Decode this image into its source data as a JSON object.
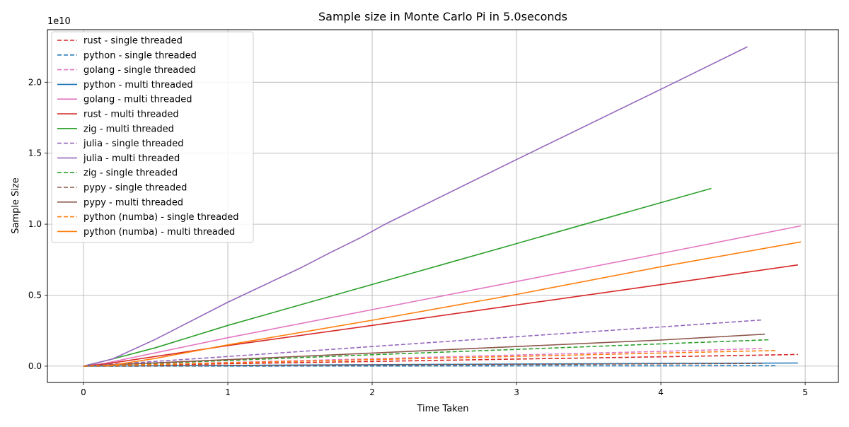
{
  "chart_data": {
    "type": "line",
    "title": "Sample size in Monte Carlo Pi in 5.0seconds",
    "xlabel": "Time Taken",
    "ylabel": "Sample Size",
    "y_offset_label": "1e10",
    "xlim": [
      -0.25,
      5.23
    ],
    "ylim": [
      -1.15,
      23.7
    ],
    "x_ticks": [
      0,
      1,
      2,
      3,
      4,
      5
    ],
    "x_tick_labels": [
      "0",
      "1",
      "2",
      "3",
      "4",
      "5"
    ],
    "y_ticks": [
      0,
      5,
      10,
      15,
      20
    ],
    "y_tick_labels": [
      "0.0",
      "0.5",
      "1.0",
      "1.5",
      "2.0"
    ],
    "grid": true,
    "legend_position": "top-left",
    "series": [
      {
        "name": "rust - single threaded",
        "color": "#d62728",
        "dash": true,
        "x": [
          0,
          0.15,
          1,
          2,
          3,
          4,
          4.95
        ],
        "y": [
          0,
          0.02,
          0.17,
          0.33,
          0.5,
          0.66,
          0.82
        ]
      },
      {
        "name": "python - single threaded",
        "color": "#1f77b4",
        "dash": true,
        "x": [
          0,
          0.3,
          1,
          2,
          3,
          4,
          4.8
        ],
        "y": [
          0,
          0.002,
          0.006,
          0.012,
          0.018,
          0.024,
          0.03
        ]
      },
      {
        "name": "golang - single threaded",
        "color": "#e377c2",
        "dash": true,
        "x": [
          0,
          0.15,
          1,
          2,
          3,
          4,
          4.7
        ],
        "y": [
          0,
          0.03,
          0.26,
          0.52,
          0.78,
          1.04,
          1.24
        ]
      },
      {
        "name": "python - multi threaded",
        "color": "#1f77b4",
        "dash": false,
        "x": [
          0,
          0.4,
          1,
          2,
          3,
          4,
          4.95
        ],
        "y": [
          0,
          0.02,
          0.05,
          0.1,
          0.15,
          0.19,
          0.22
        ]
      },
      {
        "name": "golang - multi threaded",
        "color": "#e377c2",
        "dash": false,
        "x": [
          0,
          0.15,
          1,
          2,
          3,
          4,
          4.97
        ],
        "y": [
          0,
          0.2,
          2.0,
          3.98,
          5.96,
          7.94,
          9.88
        ]
      },
      {
        "name": "rust - multi threaded",
        "color": "#d62728",
        "dash": false,
        "x": [
          0,
          0.15,
          1,
          2,
          3,
          4,
          4.95
        ],
        "y": [
          0,
          0.15,
          1.45,
          2.87,
          4.31,
          5.74,
          7.13
        ]
      },
      {
        "name": "zig - multi threaded",
        "color": "#2ca02c",
        "dash": false,
        "x": [
          0,
          0.1,
          0.2,
          0.5,
          1,
          2,
          3,
          4,
          4.35
        ],
        "y": [
          0,
          0.25,
          0.5,
          1.3,
          2.87,
          5.75,
          8.63,
          11.52,
          12.52
        ]
      },
      {
        "name": "julia - single threaded",
        "color": "#9467bd",
        "dash": true,
        "x": [
          0,
          0.3,
          1,
          2,
          3,
          4,
          4.7
        ],
        "y": [
          0,
          0.2,
          0.68,
          1.38,
          2.07,
          2.76,
          3.25
        ]
      },
      {
        "name": "julia - multi threaded",
        "color": "#9467bd",
        "dash": false,
        "x": [
          0,
          0.2,
          0.5,
          1,
          1.5,
          1.7,
          1.92,
          2.1,
          3,
          4,
          4.6
        ],
        "y": [
          0,
          0.5,
          1.9,
          4.5,
          6.9,
          7.95,
          9.05,
          10.05,
          14.55,
          19.5,
          22.5
        ]
      },
      {
        "name": "zig - single threaded",
        "color": "#2ca02c",
        "dash": true,
        "x": [
          0,
          0.2,
          1,
          2,
          3,
          4,
          4.75
        ],
        "y": [
          0,
          0.08,
          0.4,
          0.8,
          1.18,
          1.57,
          1.86
        ]
      },
      {
        "name": "pypy - single threaded",
        "color": "#8c564b",
        "dash": true,
        "x": [
          0,
          0.3,
          1,
          2,
          3,
          4,
          4.7
        ],
        "y": [
          0,
          0.01,
          0.04,
          0.08,
          0.12,
          0.16,
          0.19
        ]
      },
      {
        "name": "pypy - multi threaded",
        "color": "#8c564b",
        "dash": false,
        "x": [
          0,
          0.2,
          1,
          2,
          3,
          4,
          4.72
        ],
        "y": [
          0,
          0.1,
          0.46,
          0.92,
          1.38,
          1.84,
          2.25
        ]
      },
      {
        "name": "python (numba) - single threaded",
        "color": "#ff7f0e",
        "dash": true,
        "x": [
          0,
          0.2,
          1,
          2,
          3,
          4,
          4.8
        ],
        "y": [
          0,
          0.05,
          0.23,
          0.46,
          0.69,
          0.92,
          1.1
        ]
      },
      {
        "name": "python (numba) - multi threaded",
        "color": "#ff7f0e",
        "dash": false,
        "x": [
          0.15,
          0.25,
          0.5,
          1,
          2,
          3,
          4,
          4.97
        ],
        "y": [
          0,
          0.15,
          0.55,
          1.5,
          3.23,
          5.05,
          7.0,
          8.75
        ]
      }
    ]
  }
}
